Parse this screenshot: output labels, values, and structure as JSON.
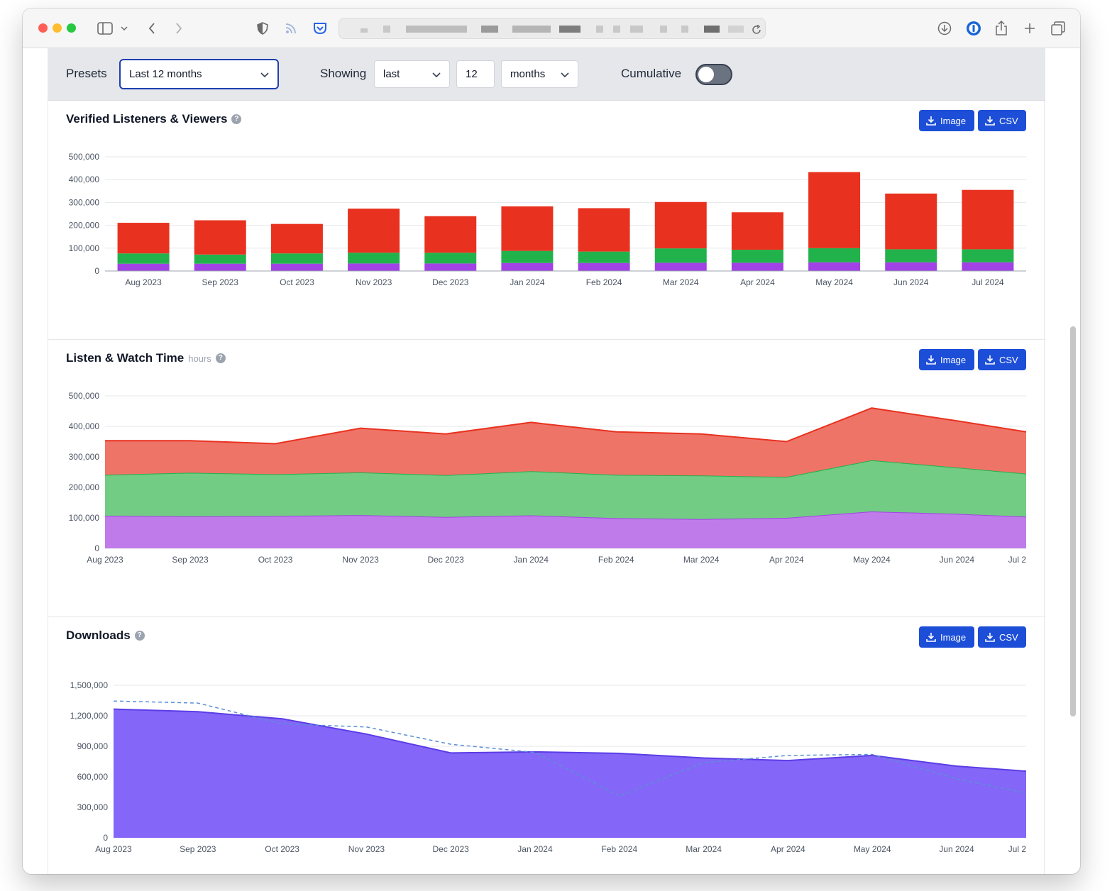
{
  "filters": {
    "presets_label": "Presets",
    "preset_value": "Last 12 months",
    "showing_label": "Showing",
    "showing_mode": "last",
    "showing_count": "12",
    "showing_unit": "months",
    "cumulative_label": "Cumulative",
    "cumulative_on": false
  },
  "buttons": {
    "image": "Image",
    "csv": "CSV"
  },
  "help_glyph": "?",
  "colors": {
    "red": "#e8321f",
    "green": "#22b24c",
    "purple": "#a242e6",
    "downloads": "#7a5cf7",
    "button": "#1d4ed8",
    "grid": "#e5e7eb"
  },
  "sections": [
    {
      "title": "Verified Listeners & Viewers",
      "chart_data": {
        "type": "bar",
        "stacked": true,
        "categories": [
          "Aug 2023",
          "Sep 2023",
          "Oct 2023",
          "Nov 2023",
          "Dec 2023",
          "Jan 2024",
          "Feb 2024",
          "Mar 2024",
          "Apr 2024",
          "May 2024",
          "Jun 2024",
          "Jul 2024"
        ],
        "series": [
          {
            "values": [
              32000,
              32000,
              32000,
              33000,
              33000,
              35000,
              35000,
              36000,
              36000,
              38000,
              38000,
              38000
            ],
            "color": "#a242e6"
          },
          {
            "values": [
              45000,
              40000,
              45000,
              47000,
              47000,
              53000,
              50000,
              63000,
              57000,
              62000,
              57000,
              57000
            ],
            "color": "#22b24c"
          },
          {
            "values": [
              134000,
              150000,
              129000,
              193000,
              160000,
              195000,
              190000,
              203000,
              164000,
              333000,
              244000,
              260000
            ],
            "color": "#e8321f"
          }
        ],
        "yticks": [
          "500,000",
          "400,000",
          "300,000",
          "200,000",
          "100,000",
          "0"
        ],
        "ylim": [
          0,
          500000
        ],
        "grid": true
      }
    },
    {
      "title": "Listen & Watch Time",
      "unit": "hours",
      "chart_data": {
        "type": "area",
        "stacked": true,
        "categories": [
          "Aug 2023",
          "Sep 2023",
          "Oct 2023",
          "Nov 2023",
          "Dec 2023",
          "Jan 2024",
          "Feb 2024",
          "Mar 2024",
          "Apr 2024",
          "May 2024",
          "Jun 2024",
          "Jul 2"
        ],
        "series": [
          {
            "values": [
              107000,
              105000,
              106000,
              109000,
              103000,
              108000,
              99000,
              96000,
              100000,
              121000,
              113000,
              104000
            ],
            "color": "#a242e6"
          },
          {
            "values": [
              134000,
              143000,
              137000,
              140000,
              137000,
              145000,
              142000,
              143000,
              134000,
              168000,
              152000,
              141000
            ],
            "color": "#22b24c"
          },
          {
            "values": [
              112000,
              105000,
              100000,
              145000,
              135000,
              160000,
              141000,
              136000,
              116000,
              171000,
              153000,
              137000
            ],
            "color": "#e8321f"
          }
        ],
        "yticks": [
          "500,000",
          "400,000",
          "300,000",
          "200,000",
          "100,000",
          "0"
        ],
        "ylim": [
          0,
          500000
        ],
        "grid": true
      }
    },
    {
      "title": "Downloads",
      "chart_data": {
        "type": "area",
        "categories": [
          "Aug 2023",
          "Sep 2023",
          "Oct 2023",
          "Nov 2023",
          "Dec 2023",
          "Jan 2024",
          "Feb 2024",
          "Mar 2024",
          "Apr 2024",
          "May 2024",
          "Jun 2024",
          "Jul 2"
        ],
        "series": [
          {
            "values": [
              1265000,
              1240000,
              1170000,
              1020000,
              835000,
              845000,
              830000,
              785000,
              760000,
              810000,
              705000,
              655000
            ],
            "color": "#7a5cf7"
          }
        ],
        "comparison_line": {
          "style": "dashed",
          "color": "#5b8fd6",
          "values": [
            1345000,
            1325000,
            1120000,
            1090000,
            920000,
            840000,
            410000,
            740000,
            810000,
            820000,
            580000,
            440000
          ]
        },
        "yticks": [
          "1,500,000",
          "1,200,000",
          "900,000",
          "600,000",
          "300,000",
          "0"
        ],
        "ylim": [
          0,
          1500000
        ],
        "grid": true
      }
    }
  ]
}
